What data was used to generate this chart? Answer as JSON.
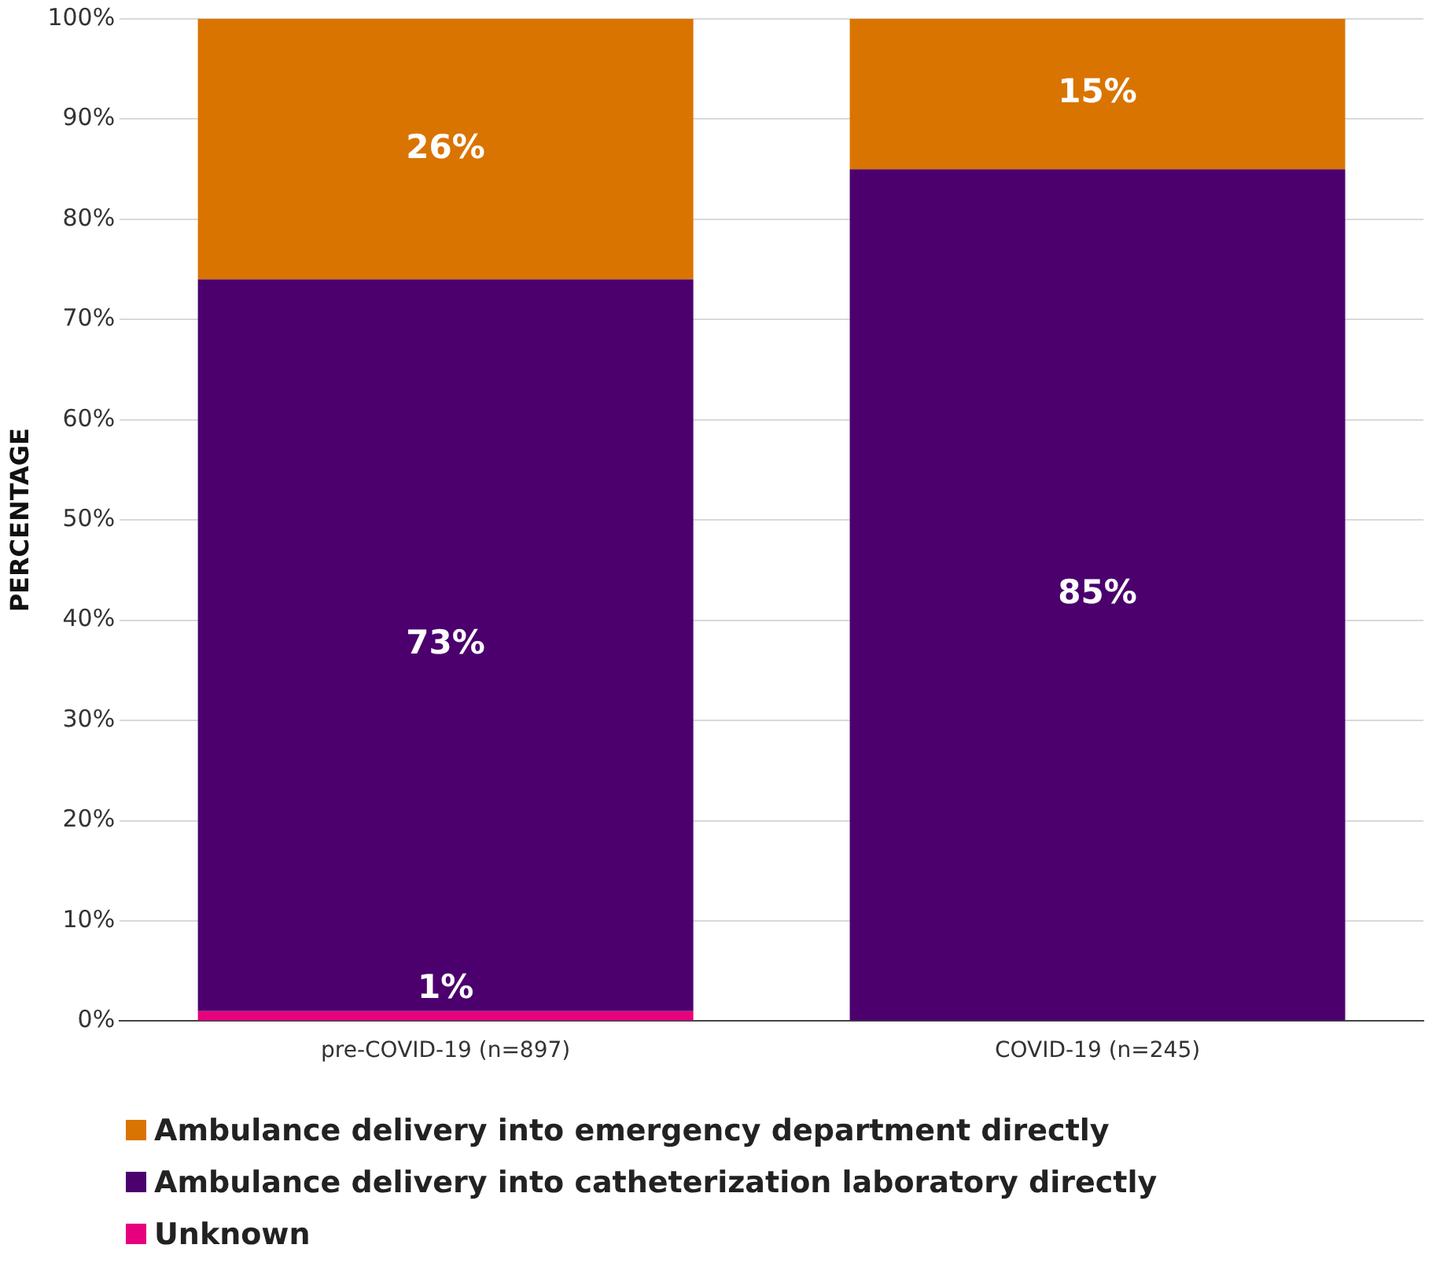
{
  "chart_data": {
    "type": "bar",
    "stacked": true,
    "ylabel": "PERCENTAGE",
    "categories": [
      "pre-COVID-19 (n=897)",
      "COVID-19 (n=245)"
    ],
    "series": [
      {
        "name": "Unknown",
        "color": "#e6007e",
        "values": [
          1,
          null
        ],
        "value_labels": [
          "1%",
          null
        ]
      },
      {
        "name": "Ambulance delivery into catheterization laboratory directly",
        "color": "#4b006e",
        "values": [
          73,
          85
        ],
        "value_labels": [
          "73%",
          "85%"
        ]
      },
      {
        "name": "Ambulance delivery into emergency department directly",
        "color": "#d97400",
        "values": [
          26,
          15
        ],
        "value_labels": [
          "26%",
          "15%"
        ]
      }
    ],
    "ylim": [
      0,
      100
    ],
    "yticks": [
      {
        "value": 0,
        "label": "0%"
      },
      {
        "value": 10,
        "label": "10%"
      },
      {
        "value": 20,
        "label": "20%"
      },
      {
        "value": 30,
        "label": "30%"
      },
      {
        "value": 40,
        "label": "40%"
      },
      {
        "value": 50,
        "label": "50%"
      },
      {
        "value": 60,
        "label": "60%"
      },
      {
        "value": 70,
        "label": "70%"
      },
      {
        "value": 80,
        "label": "80%"
      },
      {
        "value": 90,
        "label": "90%"
      },
      {
        "value": 100,
        "label": "100%"
      }
    ],
    "grid": "y",
    "legend": "bottom left"
  }
}
